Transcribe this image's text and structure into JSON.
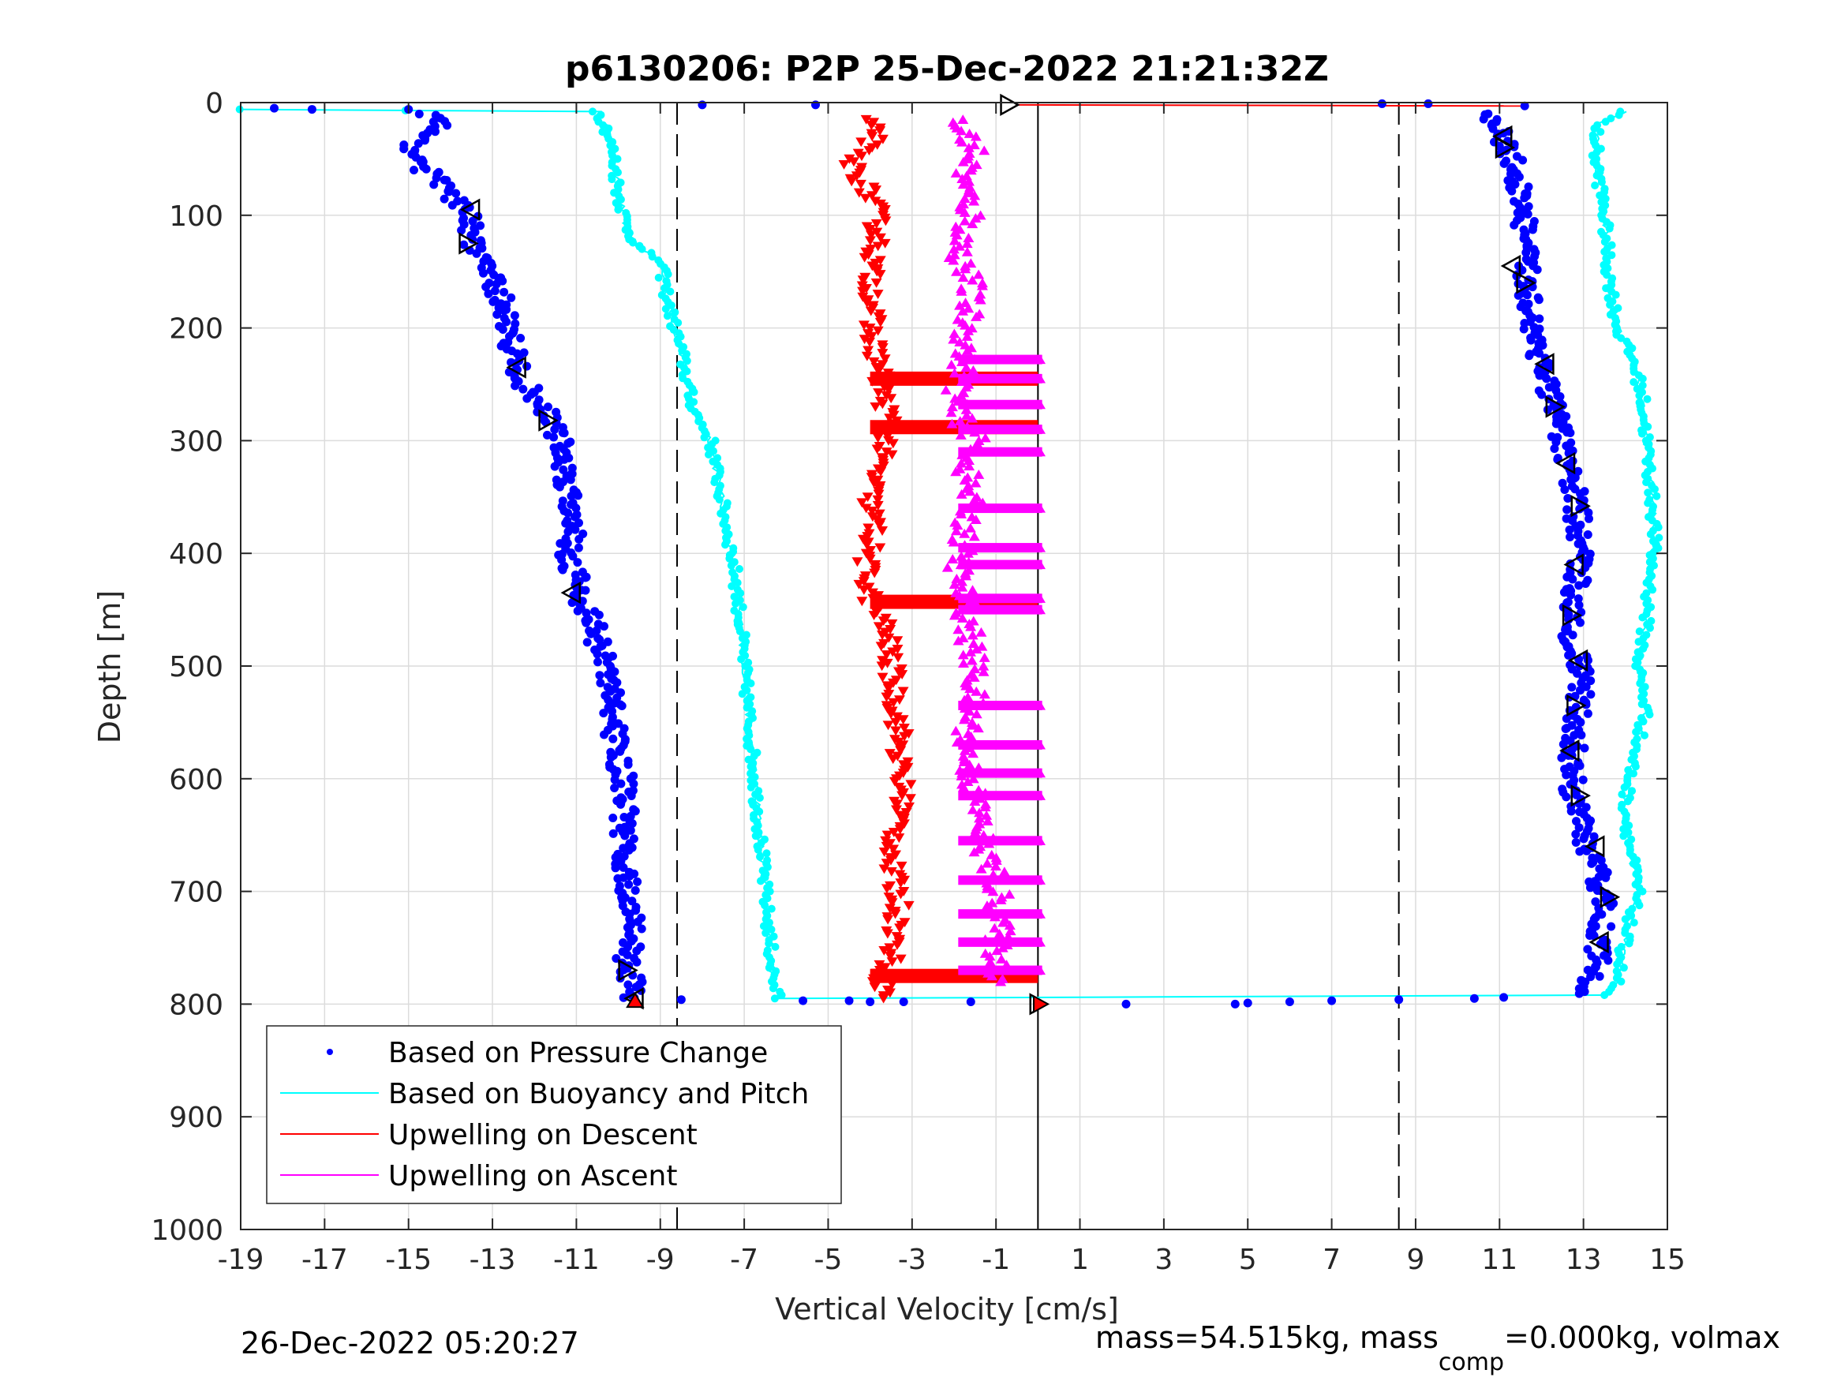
{
  "title": "p6130206: P2P 25-Dec-2022 21:21:32Z",
  "footer": {
    "timestamp": "26-Dec-2022 05:20:27",
    "mass_text": "mass=54.515kg, mass",
    "mass_sub": "comp",
    "mass_rest": "=0.000kg, volmax"
  },
  "colors": {
    "pressure": "#0000ff",
    "buoyancy": "#00ffff",
    "descent": "#ff0000",
    "ascent": "#ff00ff",
    "axis": "#262626",
    "grid": "#dcdcdc"
  },
  "chart_data": {
    "type": "scatter",
    "title": "p6130206: P2P 25-Dec-2022 21:21:32Z",
    "xlabel": "Vertical Velocity [cm/s]",
    "ylabel": "Depth [m]",
    "xlim": [
      -19,
      15
    ],
    "ylim": [
      0,
      1000
    ],
    "y_reversed": true,
    "xticks": [
      -19,
      -17,
      -15,
      -13,
      -11,
      -9,
      -7,
      -5,
      -3,
      -1,
      1,
      3,
      5,
      7,
      9,
      11,
      13,
      15
    ],
    "yticks": [
      0,
      100,
      200,
      300,
      400,
      500,
      600,
      700,
      800,
      900,
      1000
    ],
    "grid": true,
    "legend_position": "bottom-left",
    "reference_lines": [
      {
        "x": -8.6,
        "style": "dashed"
      },
      {
        "x": 8.6,
        "style": "dashed"
      },
      {
        "x": 0,
        "style": "solid"
      }
    ],
    "series": [
      {
        "name": "Based on Pressure Change",
        "marker": "dot",
        "dive": [
          [
            -14.5,
            10
          ],
          [
            -14.3,
            20
          ],
          [
            -14.9,
            40
          ],
          [
            -14.6,
            60
          ],
          [
            -14.0,
            80
          ],
          [
            -13.6,
            100
          ],
          [
            -13.5,
            120
          ],
          [
            -13.2,
            140
          ],
          [
            -13.0,
            160
          ],
          [
            -12.7,
            180
          ],
          [
            -12.6,
            200
          ],
          [
            -12.5,
            220
          ],
          [
            -12.4,
            240
          ],
          [
            -12.0,
            260
          ],
          [
            -11.6,
            280
          ],
          [
            -11.4,
            300
          ],
          [
            -11.3,
            320
          ],
          [
            -11.2,
            340
          ],
          [
            -11.1,
            360
          ],
          [
            -11.0,
            380
          ],
          [
            -11.2,
            400
          ],
          [
            -11.0,
            420
          ],
          [
            -10.9,
            440
          ],
          [
            -10.6,
            460
          ],
          [
            -10.5,
            480
          ],
          [
            -10.3,
            500
          ],
          [
            -10.2,
            520
          ],
          [
            -10.1,
            540
          ],
          [
            -10.1,
            560
          ],
          [
            -10.0,
            580
          ],
          [
            -9.9,
            600
          ],
          [
            -9.8,
            620
          ],
          [
            -9.9,
            640
          ],
          [
            -9.9,
            660
          ],
          [
            -9.8,
            680
          ],
          [
            -9.8,
            700
          ],
          [
            -9.7,
            720
          ],
          [
            -9.6,
            740
          ],
          [
            -9.8,
            760
          ],
          [
            -9.7,
            780
          ],
          [
            -9.6,
            795
          ]
        ],
        "climb": [
          [
            10.5,
            10
          ],
          [
            11.0,
            25
          ],
          [
            11.3,
            50
          ],
          [
            11.5,
            80
          ],
          [
            11.6,
            110
          ],
          [
            11.6,
            140
          ],
          [
            11.7,
            170
          ],
          [
            11.8,
            200
          ],
          [
            12.0,
            230
          ],
          [
            12.2,
            260
          ],
          [
            12.4,
            290
          ],
          [
            12.6,
            320
          ],
          [
            12.8,
            350
          ],
          [
            12.9,
            380
          ],
          [
            12.9,
            410
          ],
          [
            12.8,
            440
          ],
          [
            12.7,
            470
          ],
          [
            12.9,
            500
          ],
          [
            12.9,
            530
          ],
          [
            12.8,
            560
          ],
          [
            12.7,
            590
          ],
          [
            12.8,
            620
          ],
          [
            13.0,
            650
          ],
          [
            13.3,
            680
          ],
          [
            13.5,
            710
          ],
          [
            13.4,
            740
          ],
          [
            13.3,
            770
          ],
          [
            13.0,
            790
          ]
        ],
        "surface_points": [
          [
            -18.2,
            5
          ],
          [
            -17.3,
            6
          ],
          [
            -15.0,
            6
          ],
          [
            -8.0,
            2
          ],
          [
            -5.3,
            2
          ],
          [
            8.2,
            1
          ],
          [
            9.3,
            1
          ],
          [
            11.6,
            3
          ],
          [
            -8.5,
            796
          ],
          [
            -5.6,
            797
          ],
          [
            -4.5,
            797
          ],
          [
            -4.0,
            798
          ],
          [
            -3.2,
            798
          ],
          [
            -1.6,
            798
          ],
          [
            2.1,
            800
          ],
          [
            4.7,
            800
          ],
          [
            5.0,
            799
          ],
          [
            6.0,
            798
          ],
          [
            7.0,
            797
          ],
          [
            8.6,
            796
          ],
          [
            10.4,
            795
          ],
          [
            11.1,
            794
          ]
        ]
      },
      {
        "name": "Based on Buoyancy and Pitch",
        "marker": "line",
        "dive": [
          [
            -19.0,
            6
          ],
          [
            -15.0,
            7
          ],
          [
            -10.5,
            8
          ],
          [
            -10.3,
            20
          ],
          [
            -10.1,
            50
          ],
          [
            -10.0,
            80
          ],
          [
            -9.8,
            110
          ],
          [
            -9.5,
            130
          ],
          [
            -9.0,
            140
          ],
          [
            -8.8,
            180
          ],
          [
            -8.5,
            220
          ],
          [
            -8.3,
            260
          ],
          [
            -8.1,
            280
          ],
          [
            -7.8,
            300
          ],
          [
            -7.6,
            340
          ],
          [
            -7.4,
            380
          ],
          [
            -7.2,
            420
          ],
          [
            -7.1,
            460
          ],
          [
            -7.0,
            500
          ],
          [
            -6.9,
            540
          ],
          [
            -6.8,
            580
          ],
          [
            -6.7,
            620
          ],
          [
            -6.6,
            660
          ],
          [
            -6.5,
            700
          ],
          [
            -6.4,
            740
          ],
          [
            -6.3,
            780
          ],
          [
            -6.2,
            795
          ]
        ],
        "climb": [
          [
            14.0,
            8
          ],
          [
            13.3,
            20
          ],
          [
            13.3,
            50
          ],
          [
            13.5,
            100
          ],
          [
            13.6,
            150
          ],
          [
            13.8,
            200
          ],
          [
            14.2,
            230
          ],
          [
            14.4,
            260
          ],
          [
            14.5,
            300
          ],
          [
            14.6,
            340
          ],
          [
            14.7,
            380
          ],
          [
            14.6,
            420
          ],
          [
            14.5,
            460
          ],
          [
            14.3,
            500
          ],
          [
            14.5,
            540
          ],
          [
            14.2,
            580
          ],
          [
            14.0,
            620
          ],
          [
            14.1,
            660
          ],
          [
            14.3,
            700
          ],
          [
            14.0,
            740
          ],
          [
            13.8,
            780
          ],
          [
            13.5,
            792
          ]
        ]
      },
      {
        "name": "Upwelling on Descent",
        "marker": "triangle-down",
        "points": [
          [
            -4.2,
            15
          ],
          [
            -3.8,
            30
          ],
          [
            -4.5,
            50
          ],
          [
            -4.2,
            70
          ],
          [
            -3.9,
            90
          ],
          [
            -3.8,
            120
          ],
          [
            -4.0,
            150
          ],
          [
            -3.9,
            180
          ],
          [
            -4.0,
            200
          ],
          [
            -3.8,
            230
          ],
          [
            -3.7,
            260
          ],
          [
            -3.5,
            290
          ],
          [
            -3.8,
            320
          ],
          [
            -4.0,
            350
          ],
          [
            -3.9,
            380
          ],
          [
            -4.1,
            410
          ],
          [
            -4.0,
            440
          ],
          [
            -3.6,
            470
          ],
          [
            -3.5,
            500
          ],
          [
            -3.4,
            530
          ],
          [
            -3.3,
            560
          ],
          [
            -3.3,
            590
          ],
          [
            -3.2,
            620
          ],
          [
            -3.4,
            650
          ],
          [
            -3.5,
            680
          ],
          [
            -3.3,
            710
          ],
          [
            -3.4,
            740
          ],
          [
            -3.5,
            760
          ],
          [
            -3.7,
            780
          ],
          [
            -3.6,
            795
          ]
        ],
        "spikes_to_zero_at_depth": [
          245,
          288,
          443,
          775
        ],
        "surface_line": [
          [
            -0.5,
            2
          ],
          [
            11.6,
            3
          ]
        ]
      },
      {
        "name": "Upwelling on Ascent",
        "marker": "triangle-up",
        "points": [
          [
            -2.0,
            15
          ],
          [
            -1.5,
            40
          ],
          [
            -1.8,
            70
          ],
          [
            -1.6,
            100
          ],
          [
            -1.9,
            130
          ],
          [
            -1.6,
            160
          ],
          [
            -1.7,
            200
          ],
          [
            -1.8,
            240
          ],
          [
            -2.0,
            270
          ],
          [
            -1.5,
            300
          ],
          [
            -1.7,
            330
          ],
          [
            -1.6,
            360
          ],
          [
            -1.8,
            390
          ],
          [
            -1.9,
            420
          ],
          [
            -1.7,
            450
          ],
          [
            -1.6,
            480
          ],
          [
            -1.5,
            510
          ],
          [
            -1.6,
            540
          ],
          [
            -1.7,
            570
          ],
          [
            -1.6,
            600
          ],
          [
            -1.4,
            630
          ],
          [
            -1.3,
            660
          ],
          [
            -1.0,
            690
          ],
          [
            -0.9,
            720
          ],
          [
            -1.0,
            750
          ],
          [
            -0.9,
            780
          ]
        ],
        "spikes_to_zero_at_depth": [
          228,
          245,
          268,
          290,
          310,
          360,
          395,
          410,
          440,
          450,
          535,
          570,
          595,
          615,
          655,
          690,
          720,
          745,
          770
        ]
      }
    ],
    "open_triangle_markers": [
      [
        -0.7,
        2
      ],
      [
        -13.5,
        95
      ],
      [
        -13.6,
        125
      ],
      [
        -12.4,
        235
      ],
      [
        -11.7,
        282
      ],
      [
        -11.1,
        435
      ],
      [
        -9.8,
        770
      ],
      [
        -9.6,
        795
      ],
      [
        0.0,
        800
      ],
      [
        11.1,
        30
      ],
      [
        11.1,
        40
      ],
      [
        11.3,
        145
      ],
      [
        11.6,
        160
      ],
      [
        12.1,
        232
      ],
      [
        12.3,
        270
      ],
      [
        12.6,
        320
      ],
      [
        12.9,
        358
      ],
      [
        12.8,
        410
      ],
      [
        12.7,
        455
      ],
      [
        12.9,
        495
      ],
      [
        12.8,
        535
      ],
      [
        12.7,
        575
      ],
      [
        12.9,
        615
      ],
      [
        13.3,
        660
      ],
      [
        13.6,
        705
      ],
      [
        13.4,
        745
      ]
    ]
  },
  "legend": [
    {
      "label": "Based on Pressure Change",
      "style": "dot"
    },
    {
      "label": "Based on Buoyancy and Pitch",
      "style": "line"
    },
    {
      "label": "Upwelling on Descent",
      "style": "line"
    },
    {
      "label": "Upwelling on Ascent",
      "style": "line"
    }
  ]
}
